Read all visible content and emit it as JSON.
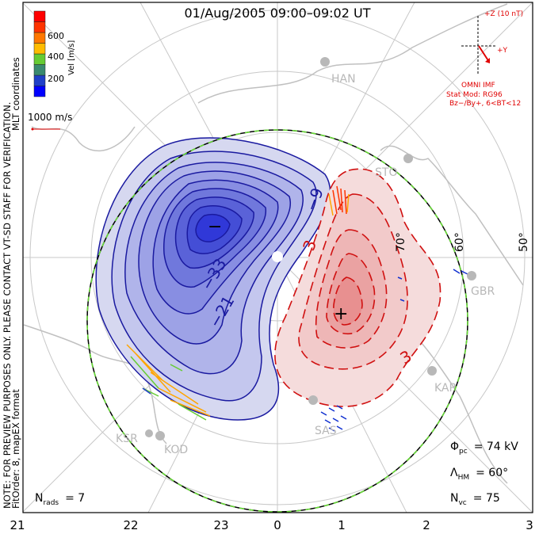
{
  "title": "01/Aug/2005 09:00–09:02 UT",
  "side_note": {
    "line1": "NOTE: FOR PREVIEW PURPOSES ONLY. PLEASE CONTACT VT-SD STAFF FOR VERIFICATION.",
    "line2": "FitOrder: 8, mapEX format",
    "coords": "MLT coordinates"
  },
  "colorbar": {
    "label": "Vel [m/s]",
    "ticks": [
      "200",
      "400",
      "600"
    ],
    "colors": [
      "#0000ff",
      "#2040c8",
      "#3a8a70",
      "#66cc33",
      "#ffbb00",
      "#ff7700",
      "#ff3300",
      "#ff0000"
    ]
  },
  "reference_vector": {
    "label": "1000 m/s"
  },
  "imf": {
    "z_label": "+Z (10 nT)",
    "y_label": "+Y",
    "source": "OMNI IMF",
    "model": "Stat Mod: RG96",
    "condition": "Bz−/By+, 6<BT<12",
    "color": "#e00000"
  },
  "stations": [
    "HAN",
    "STO",
    "GBR",
    "KAP",
    "SAS",
    "KOD",
    "KSR"
  ],
  "latitude_labels": [
    "70°",
    "60°",
    "50°"
  ],
  "contour_labels": [
    "−9",
    "−33",
    "−21",
    "3",
    "3"
  ],
  "extrema": {
    "min": "−",
    "max": "+"
  },
  "stats": {
    "phi_pc": {
      "symbol": "Φ",
      "sub": "pc",
      "value": "= 74 kV"
    },
    "lambda_hm": {
      "symbol": "Λ",
      "sub": "HM",
      "value": "= 60°"
    },
    "n_vc": {
      "symbol": "N",
      "sub": "vc",
      "value": "= 75"
    },
    "n_rads": {
      "symbol": "N",
      "sub": "rads",
      "value": "= 7"
    }
  },
  "mlt_labels": [
    "21",
    "22",
    "23",
    "0",
    "1",
    "2",
    "3"
  ]
}
